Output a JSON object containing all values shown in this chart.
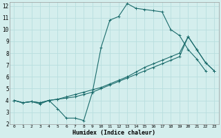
{
  "xlabel": "Humidex (Indice chaleur)",
  "bg_color": "#d4eeed",
  "grid_color": "#b8dede",
  "line_color": "#1a6b6b",
  "xlim": [
    -0.5,
    23.5
  ],
  "ylim": [
    2,
    12.3
  ],
  "xticks": [
    0,
    1,
    2,
    3,
    4,
    5,
    6,
    7,
    8,
    9,
    10,
    11,
    12,
    13,
    14,
    15,
    16,
    17,
    18,
    19,
    20,
    21,
    22,
    23
  ],
  "yticks": [
    2,
    3,
    4,
    5,
    6,
    7,
    8,
    9,
    10,
    11,
    12
  ],
  "line1_x": [
    0,
    1,
    2,
    3,
    4,
    5,
    6,
    7,
    8,
    9,
    10,
    11,
    12,
    13,
    14,
    15,
    16,
    17,
    18,
    19,
    20,
    21,
    22
  ],
  "line1_y": [
    4,
    3.8,
    3.9,
    3.8,
    4.0,
    3.3,
    2.5,
    2.5,
    2.3,
    4.7,
    8.5,
    10.8,
    11.1,
    12.2,
    11.8,
    11.7,
    11.6,
    11.5,
    10.0,
    9.5,
    8.3,
    7.5,
    6.5
  ],
  "line2_x": [
    0,
    1,
    2,
    3,
    4,
    5,
    6,
    7,
    8,
    9,
    10,
    11,
    12,
    13,
    14,
    15,
    16,
    17,
    18,
    19,
    20,
    21,
    22,
    23
  ],
  "line2_y": [
    4,
    3.8,
    3.9,
    3.7,
    4.0,
    4.1,
    4.2,
    4.3,
    4.5,
    4.7,
    5.0,
    5.3,
    5.6,
    5.9,
    6.2,
    6.5,
    6.8,
    7.1,
    7.4,
    7.7,
    9.4,
    8.3,
    7.2,
    6.5
  ],
  "line3_x": [
    0,
    1,
    2,
    3,
    4,
    5,
    6,
    7,
    8,
    9,
    10,
    11,
    12,
    13,
    14,
    15,
    16,
    17,
    18,
    19,
    20,
    21,
    22,
    23
  ],
  "line3_y": [
    4,
    3.8,
    3.9,
    3.8,
    4.0,
    4.1,
    4.3,
    4.5,
    4.7,
    4.9,
    5.1,
    5.4,
    5.7,
    6.0,
    6.4,
    6.8,
    7.1,
    7.4,
    7.7,
    8.0,
    9.4,
    8.3,
    7.2,
    6.5
  ],
  "marker": "+",
  "markersize": 3,
  "linewidth": 0.8
}
